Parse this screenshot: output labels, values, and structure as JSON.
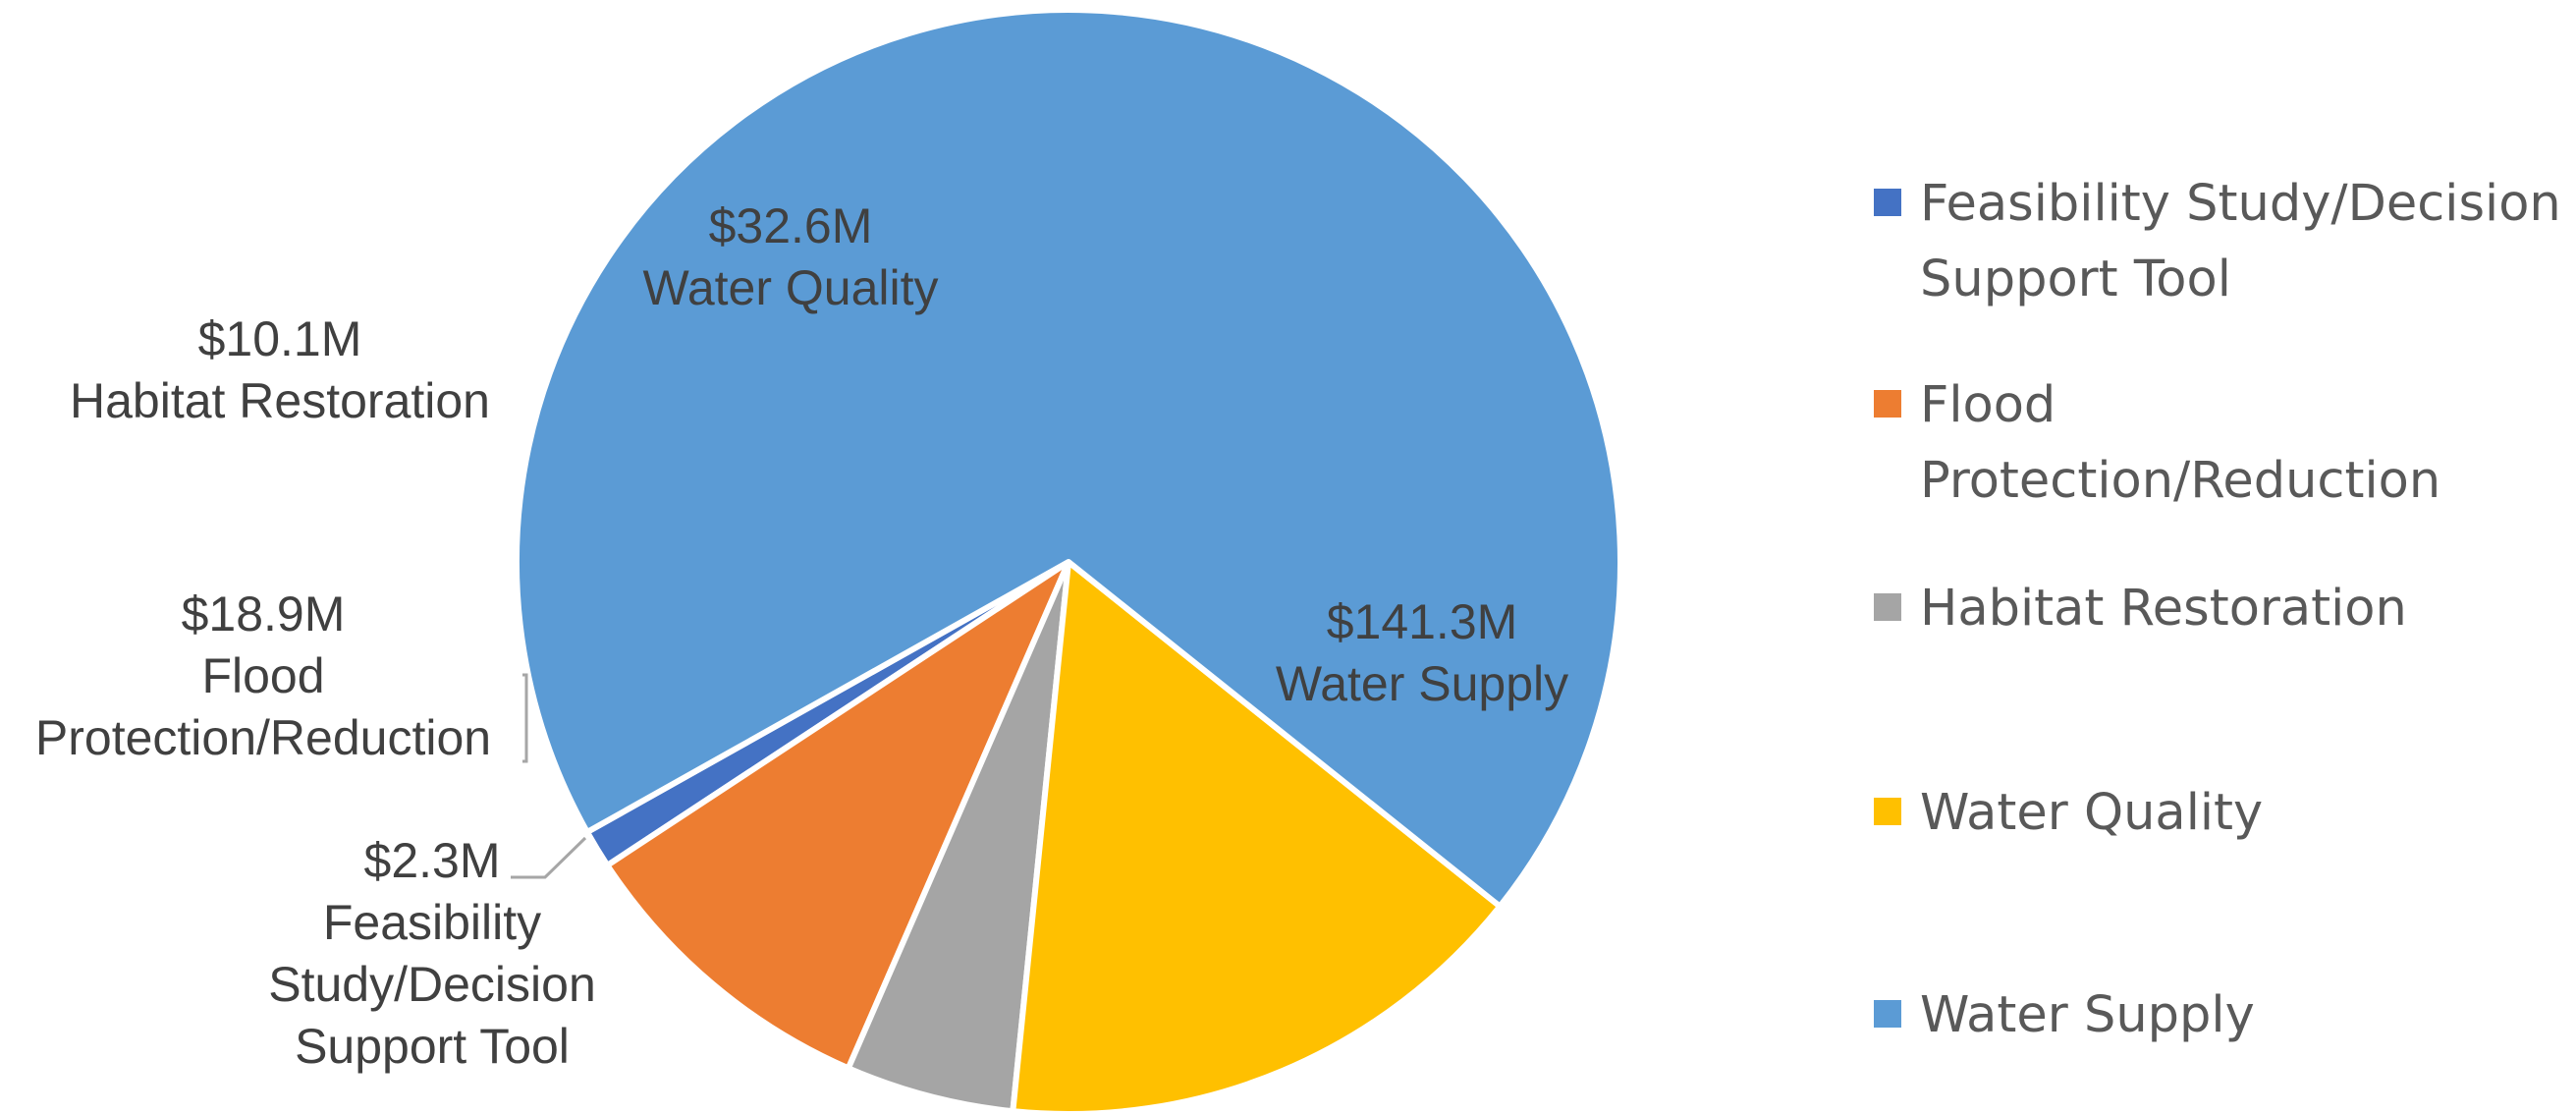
{
  "chart_data": {
    "type": "pie",
    "title": "",
    "slices": [
      {
        "category": "Feasibility Study/Decision Support Tool",
        "value": 2.3,
        "value_label": "$2.3M",
        "label_lines": [
          "$2.3M",
          "Feasibility",
          "Study/Decision",
          "Support Tool"
        ],
        "legend_lines": [
          "Feasibility Study/Decision",
          "Support Tool"
        ],
        "color": "#4472C4"
      },
      {
        "category": "Flood Protection/Reduction",
        "value": 18.9,
        "value_label": "$18.9M",
        "label_lines": [
          "$18.9M",
          "Flood",
          "Protection/Reduction"
        ],
        "legend_lines": [
          "Flood",
          "Protection/Reduction"
        ],
        "color": "#ED7D31"
      },
      {
        "category": "Habitat Restoration",
        "value": 10.1,
        "value_label": "$10.1M",
        "label_lines": [
          "$10.1M",
          "Habitat Restoration"
        ],
        "legend_lines": [
          "Habitat Restoration"
        ],
        "color": "#A5A5A5"
      },
      {
        "category": "Water Quality",
        "value": 32.6,
        "value_label": "$32.6M",
        "label_lines": [
          "$32.6M",
          "Water Quality"
        ],
        "legend_lines": [
          "Water Quality"
        ],
        "color": "#FFC000"
      },
      {
        "category": "Water Supply",
        "value": 141.3,
        "value_label": "$141.3M",
        "label_lines": [
          "$141.3M",
          "Water Supply"
        ],
        "legend_lines": [
          "Water Supply"
        ],
        "color": "#5B9BD5"
      }
    ],
    "legend_position": "right",
    "slice_order": "counterclockwise from bottom-left",
    "data_labels": "value and category"
  }
}
